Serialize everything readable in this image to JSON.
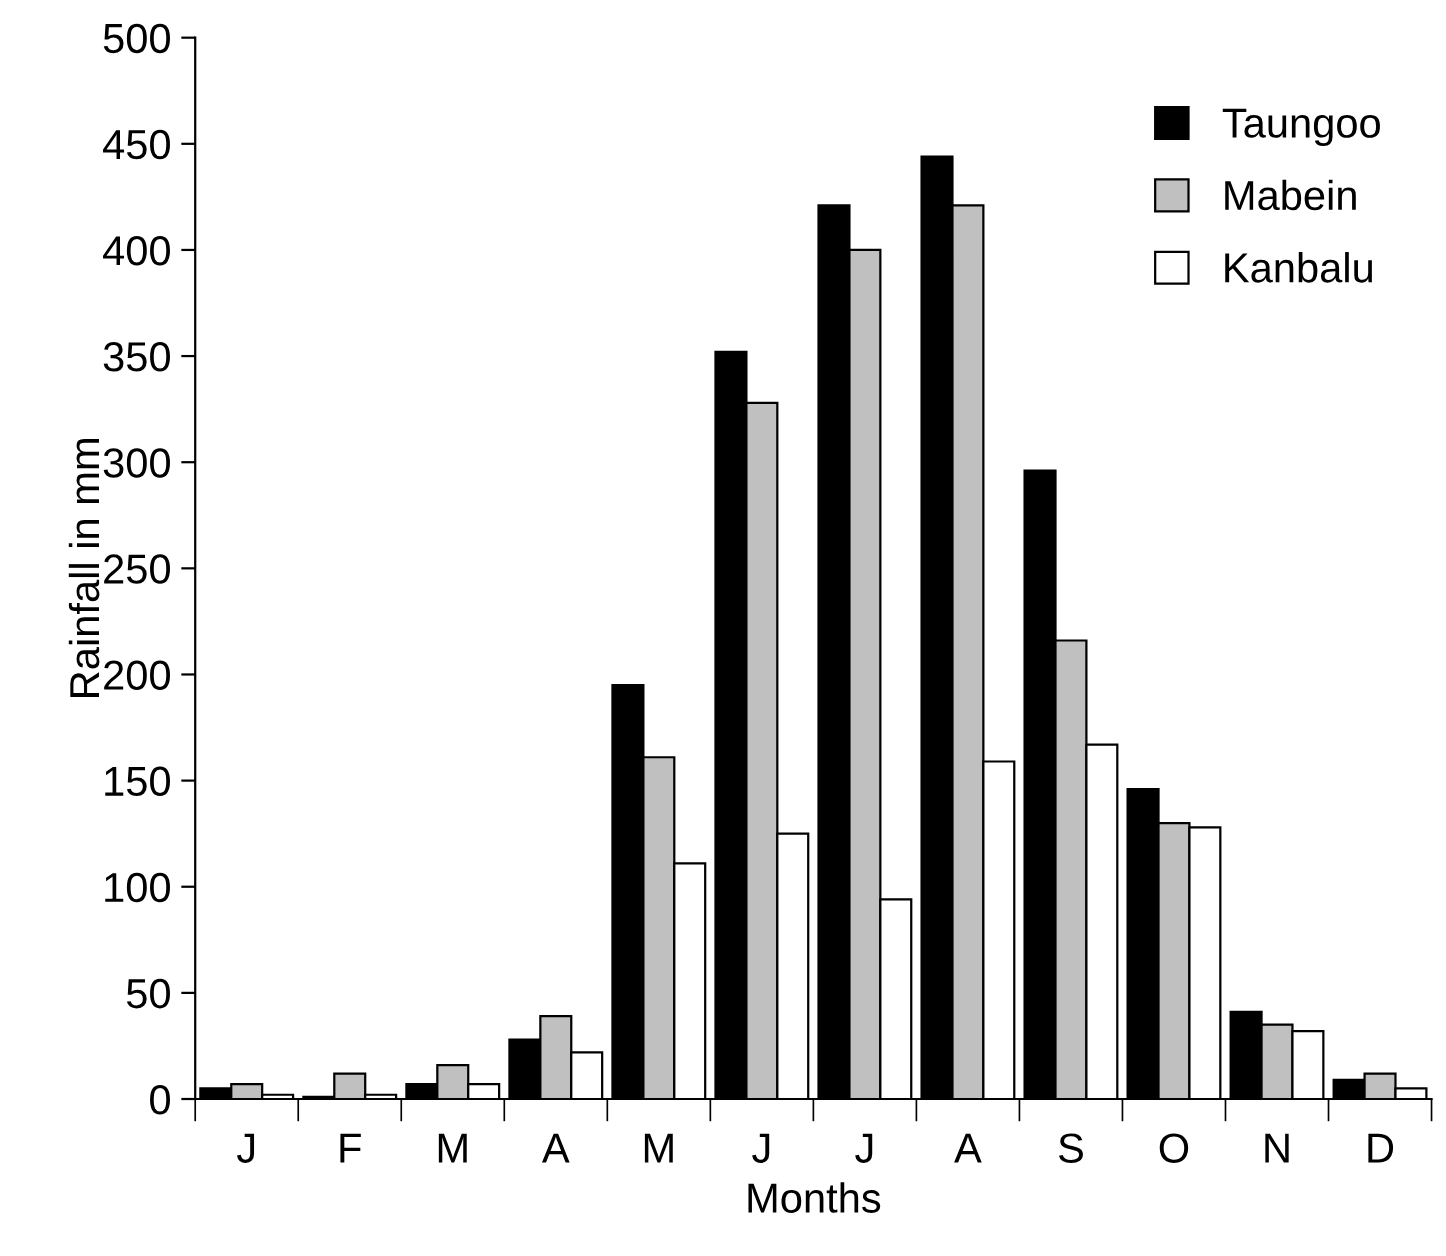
{
  "chart_data": {
    "type": "bar",
    "xlabel": "Months",
    "ylabel": "Rainfall in mm",
    "categories": [
      "J",
      "F",
      "M",
      "A",
      "M",
      "J",
      "J",
      "A",
      "S",
      "O",
      "N",
      "D"
    ],
    "series": [
      {
        "name": "Taungoo",
        "color": "#000000",
        "values": [
          5,
          1,
          7,
          28,
          195,
          352,
          421,
          444,
          296,
          146,
          41,
          9
        ]
      },
      {
        "name": "Mabein",
        "color": "#c0c0c0",
        "values": [
          7,
          12,
          16,
          39,
          161,
          328,
          400,
          421,
          216,
          130,
          35,
          12
        ]
      },
      {
        "name": "Kanbalu",
        "color": "#ffffff",
        "values": [
          2,
          2,
          7,
          22,
          111,
          125,
          94,
          159,
          167,
          128,
          32,
          5
        ]
      }
    ],
    "ylim": [
      0,
      500
    ],
    "yticks": [
      0,
      50,
      100,
      150,
      200,
      250,
      300,
      350,
      400,
      450,
      500
    ],
    "grid": false,
    "legend": "top right"
  }
}
